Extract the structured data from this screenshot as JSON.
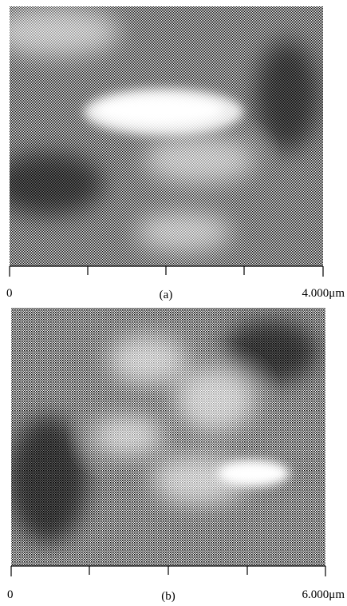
{
  "panels": [
    {
      "label": "(a)",
      "axis_start": "0",
      "axis_end": "4.000μm"
    },
    {
      "label": "(b)",
      "axis_start": "0",
      "axis_end": "6.000μm"
    }
  ]
}
